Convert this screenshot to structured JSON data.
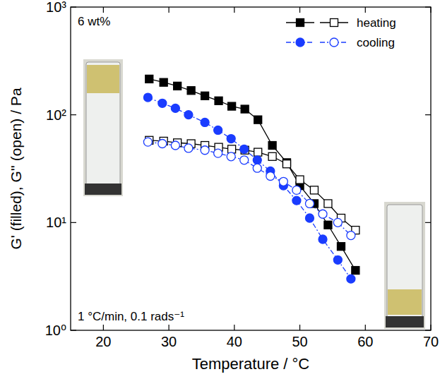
{
  "chart_data": {
    "type": "line",
    "xlabel": "Temperature / °C",
    "ylabel": "G' (filled), G'' (open) / Pa",
    "annotations": [
      "6 wt%",
      "1 °C/min, 0.1 rads⁻¹"
    ],
    "log": "y",
    "legend": "top-right",
    "xlim": [
      15,
      70
    ],
    "xticks": [
      20,
      30,
      40,
      50,
      60,
      70
    ],
    "ylim": [
      1,
      1000
    ],
    "yticks": [
      {
        "value": 1,
        "label": "10⁰"
      },
      {
        "value": 10,
        "label": "10¹"
      },
      {
        "value": 100,
        "label": "10²"
      },
      {
        "value": 1000,
        "label": "10³"
      }
    ],
    "series": [
      {
        "name": "heating",
        "color": "#000000",
        "marker": "square-filled",
        "line_style": "solid",
        "x": [
          27,
          29.2,
          31.3,
          33.4,
          35.5,
          37.6,
          39.6,
          41.6,
          43.6,
          45.8,
          48,
          50,
          52.2,
          54.3,
          56.3,
          58.5
        ],
        "values": [
          215,
          200,
          185,
          168,
          150,
          135,
          120,
          113,
          90,
          52,
          36,
          22,
          15,
          9.5,
          6,
          3.6
        ]
      },
      {
        "name": "heating",
        "color": "#000000",
        "marker": "square-open",
        "line_style": "solid",
        "x": [
          27,
          29.2,
          31.3,
          33.4,
          35.5,
          37.6,
          39.6,
          41.6,
          43.6,
          45.8,
          48,
          50,
          52.2,
          54.3,
          56.3,
          58.5
        ],
        "values": [
          58,
          57,
          55,
          54,
          52,
          50,
          48,
          47,
          45,
          41,
          35,
          25,
          20,
          15,
          11,
          8.5
        ]
      },
      {
        "name": "cooling",
        "color": "#1a3cff",
        "marker": "circle-filled",
        "line_style": "dash-dot",
        "x": [
          26.8,
          29,
          31,
          33,
          35.5,
          37.5,
          39.5,
          41.5,
          43.5,
          45.5,
          47.5,
          49.5,
          51.5,
          53.5,
          55.8,
          57.8
        ],
        "values": [
          145,
          128,
          115,
          100,
          85,
          72,
          60,
          48,
          38,
          30,
          22,
          16,
          11,
          7,
          4.5,
          3
        ]
      },
      {
        "name": "cooling",
        "color": "#1a3cff",
        "marker": "circle-open",
        "line_style": "dash-dot",
        "x": [
          26.8,
          29,
          31,
          33,
          35.5,
          37.5,
          39.5,
          41.5,
          43.5,
          45.5,
          47.5,
          49.5,
          51.5,
          53.5,
          55.8,
          57.8
        ],
        "values": [
          56,
          54,
          52,
          49,
          47,
          44,
          41,
          38,
          32,
          27,
          24,
          20,
          15,
          12,
          10,
          7.6
        ]
      }
    ]
  }
}
